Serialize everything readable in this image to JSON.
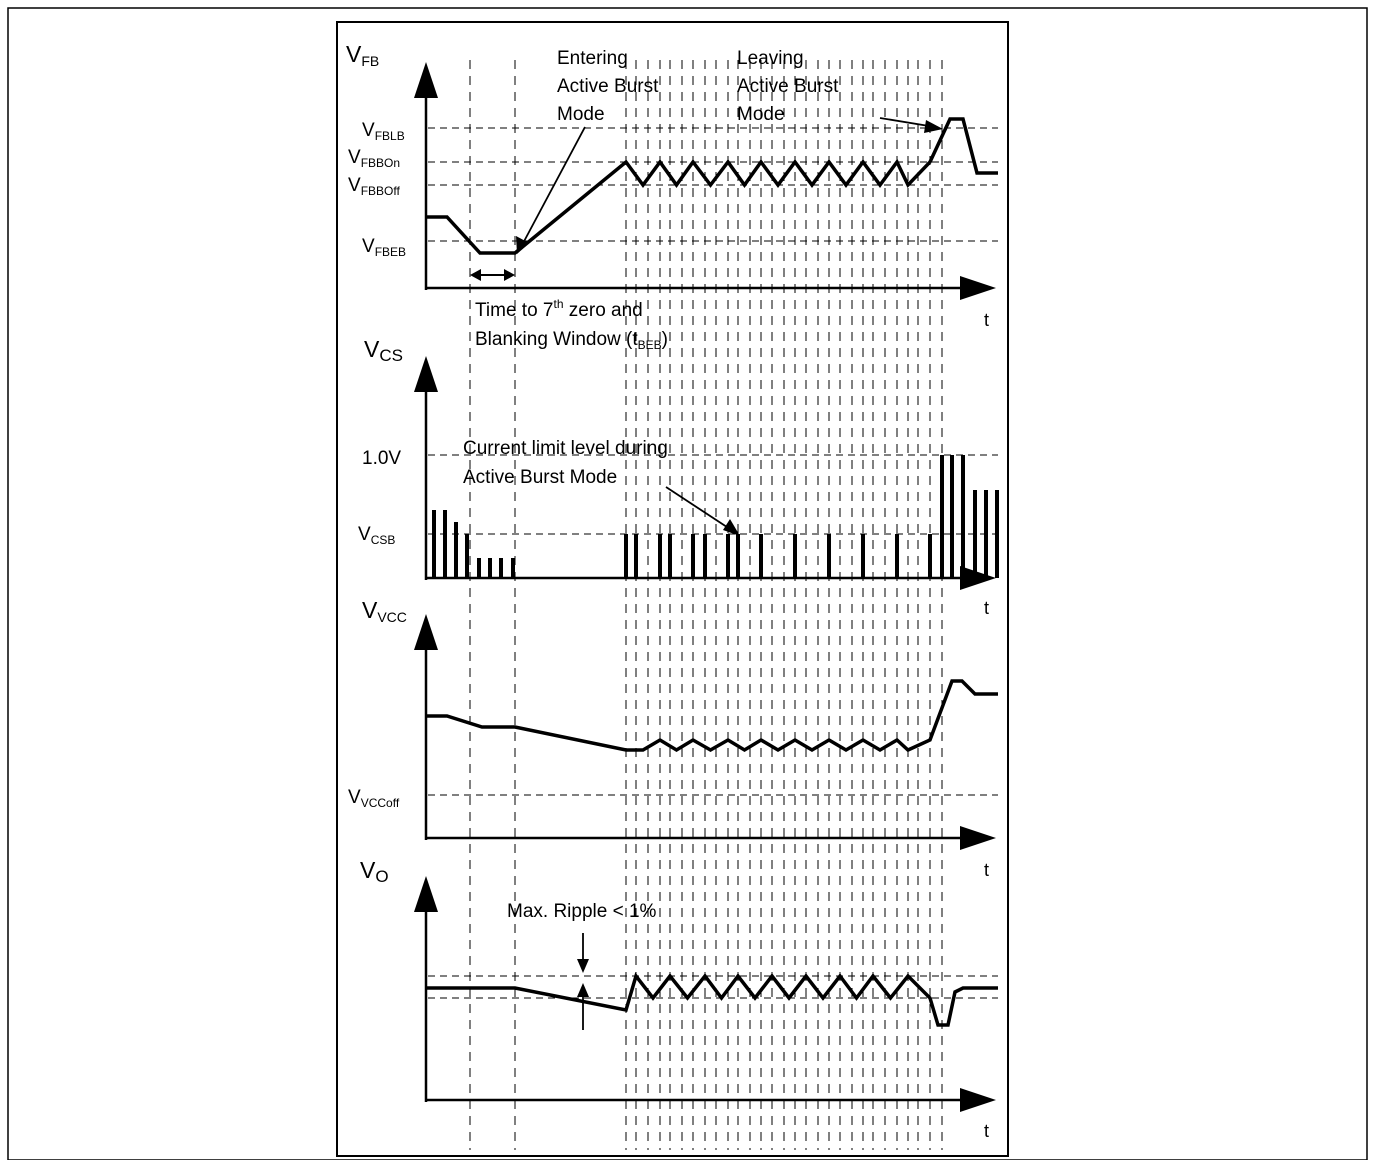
{
  "panels": {
    "fb": {
      "axis_main": "V",
      "axis_sub": "FB",
      "t_label": "t",
      "levels": [
        {
          "main": "V",
          "sub": "FBLB"
        },
        {
          "main": "V",
          "sub": "FBBOn"
        },
        {
          "main": "V",
          "sub": "FBBOff"
        },
        {
          "main": "V",
          "sub": "FBEB"
        }
      ],
      "annotation_entering": [
        "Entering",
        "Active Burst",
        "Mode"
      ],
      "annotation_leaving": [
        "Leaving",
        "Active Burst",
        "Mode"
      ],
      "annotation_time": {
        "line1_a": "Time to 7",
        "line1_sup": "th",
        "line1_b": " zero and",
        "line2_a": "Blanking Window (t",
        "line2_sub": "BEB",
        "line2_b": ")"
      }
    },
    "cs": {
      "axis_main": "V",
      "axis_sub": "CS",
      "t_label": "t",
      "levels": [
        {
          "main": "1.0V",
          "sub": ""
        },
        {
          "main": "V",
          "sub": "CSB"
        }
      ],
      "annotation": [
        "Current limit level during",
        "Active Burst Mode"
      ]
    },
    "vcc": {
      "axis_main": "V",
      "axis_sub": "VCC",
      "t_label": "t",
      "levels": [
        {
          "main": "V",
          "sub": "VCCoff"
        }
      ]
    },
    "vo": {
      "axis_main": "V",
      "axis_sub": "O",
      "t_label": "t",
      "annotation": "Max. Ripple < 1%"
    }
  }
}
